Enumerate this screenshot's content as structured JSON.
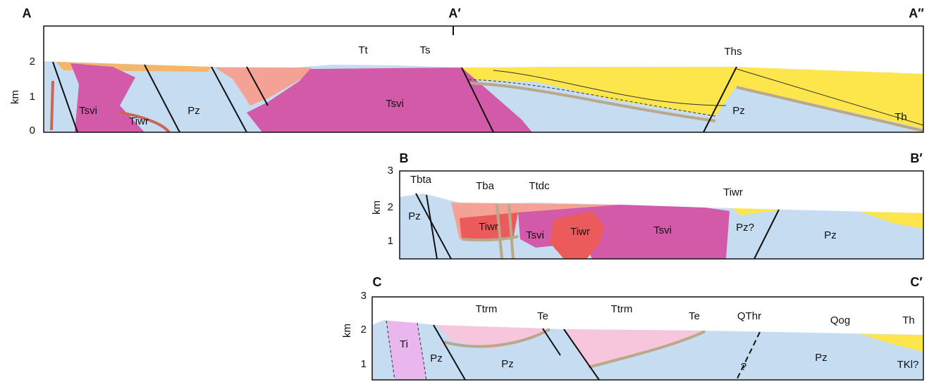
{
  "sections": [
    {
      "labels": {
        "left": "A",
        "middle": "A′",
        "right": "A″"
      },
      "axis": {
        "title": "km",
        "ticks": [
          2,
          1,
          0
        ]
      },
      "units": [
        "Tsvi",
        "Tiwr",
        "Pz",
        "Tt",
        "Ts",
        "Tsvi",
        "Ths",
        "Pz",
        "Th"
      ]
    },
    {
      "labels": {
        "left": "B",
        "right": "B′"
      },
      "axis": {
        "title": "km",
        "ticks": [
          3,
          2,
          1
        ]
      },
      "units": [
        "Tbta",
        "Tba",
        "Ttdc",
        "Tiwr",
        "Pz",
        "Tiwr",
        "Tsvi",
        "Tiwr",
        "Tsvi",
        "Pz?",
        "Pz"
      ]
    },
    {
      "labels": {
        "left": "C",
        "right": "C′"
      },
      "axis": {
        "title": "km",
        "ticks": [
          3,
          2,
          1
        ]
      },
      "units": [
        "Ti",
        "Pz",
        "Ttrm",
        "Te",
        "Pz",
        "Ttrm",
        "Te",
        "QThr",
        "Pz",
        "Qog",
        "Th",
        "TKl?",
        "?"
      ]
    }
  ]
}
